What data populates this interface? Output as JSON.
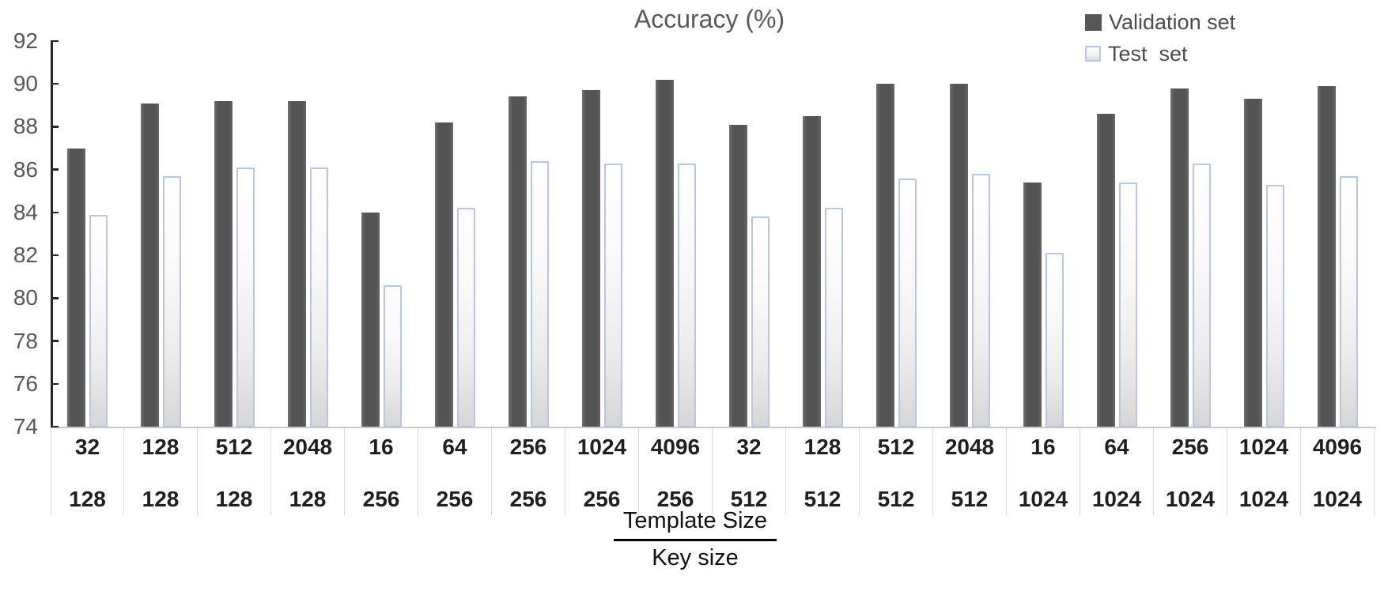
{
  "title": "Accuracy (%)",
  "legend": {
    "validation_label": "Validation set",
    "test_label": "Test  set"
  },
  "axis_caption": {
    "numerator": "Template Size",
    "denominator": "Key size"
  },
  "colors": {
    "validation_bar": "#575757",
    "test_bar_border": "#b7c6e4",
    "test_bar_fill": "#ffffff",
    "axis_line": "#262626",
    "table_border": "#d9d9d9",
    "title_text": "#595959"
  },
  "chart_data": {
    "type": "bar",
    "title": "Accuracy (%)",
    "ylabel": "Accuracy (%)",
    "ylim": [
      74,
      92
    ],
    "ytick_step": 2,
    "yticks": [
      74,
      76,
      78,
      80,
      82,
      84,
      86,
      88,
      90,
      92
    ],
    "grid": false,
    "legend_position": "top-right",
    "categories_template_size": [
      "32",
      "128",
      "512",
      "2048",
      "16",
      "64",
      "256",
      "1024",
      "4096",
      "32",
      "128",
      "512",
      "2048",
      "16",
      "64",
      "256",
      "1024",
      "4096"
    ],
    "categories_key_size": [
      "128",
      "128",
      "128",
      "128",
      "256",
      "256",
      "256",
      "256",
      "256",
      "512",
      "512",
      "512",
      "512",
      "1024",
      "1024",
      "1024",
      "1024",
      "1024"
    ],
    "series": [
      {
        "name": "Validation set",
        "values": [
          87.0,
          89.1,
          89.2,
          89.2,
          84.0,
          88.2,
          89.4,
          89.7,
          90.2,
          88.1,
          88.5,
          90.0,
          90.0,
          85.4,
          88.6,
          89.8,
          89.3,
          89.9
        ]
      },
      {
        "name": "Test  set",
        "values": [
          83.9,
          85.7,
          86.1,
          86.1,
          80.6,
          84.2,
          86.4,
          86.3,
          86.3,
          83.8,
          84.2,
          85.6,
          85.8,
          82.1,
          85.4,
          86.3,
          85.3,
          85.7
        ]
      }
    ]
  }
}
